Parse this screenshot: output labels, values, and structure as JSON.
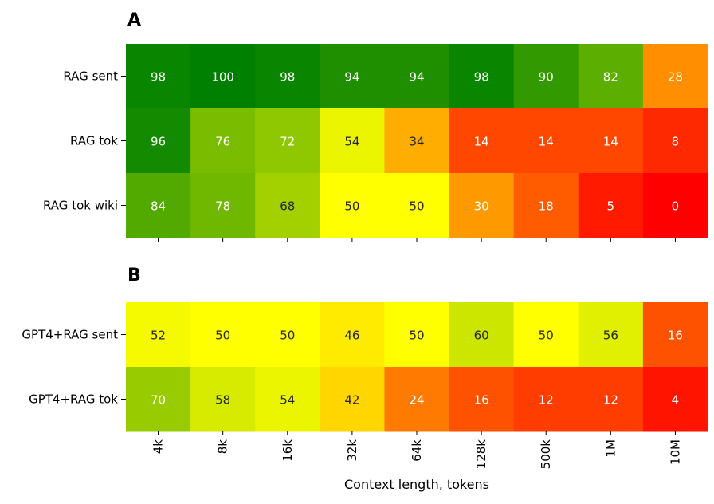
{
  "chart_data": [
    {
      "type": "heatmap",
      "panel_label": "A",
      "rows": [
        "RAG sent",
        "RAG tok",
        "RAG tok wiki"
      ],
      "columns": [
        "4k",
        "8k",
        "16k",
        "32k",
        "64k",
        "128k",
        "500k",
        "1M",
        "10M"
      ],
      "values": [
        [
          98,
          100,
          98,
          94,
          94,
          98,
          90,
          82,
          28
        ],
        [
          96,
          76,
          72,
          54,
          34,
          14,
          14,
          14,
          8
        ],
        [
          84,
          78,
          68,
          50,
          50,
          30,
          18,
          5,
          0
        ]
      ],
      "color_scale": {
        "min": 0,
        "mid": 50,
        "max": 100,
        "colors": [
          "#ff0000",
          "#ffff00",
          "#008000"
        ]
      }
    },
    {
      "type": "heatmap",
      "panel_label": "B",
      "rows": [
        "GPT4+RAG sent",
        "GPT4+RAG tok"
      ],
      "columns": [
        "4k",
        "8k",
        "16k",
        "32k",
        "64k",
        "128k",
        "500k",
        "1M",
        "10M"
      ],
      "values": [
        [
          52,
          50,
          50,
          46,
          50,
          60,
          50,
          56,
          16
        ],
        [
          70,
          58,
          54,
          42,
          24,
          16,
          12,
          12,
          4
        ]
      ],
      "xlabel": "Context length, tokens",
      "color_scale": {
        "min": 0,
        "mid": 50,
        "max": 100,
        "colors": [
          "#ff0000",
          "#ffff00",
          "#008000"
        ]
      }
    }
  ]
}
